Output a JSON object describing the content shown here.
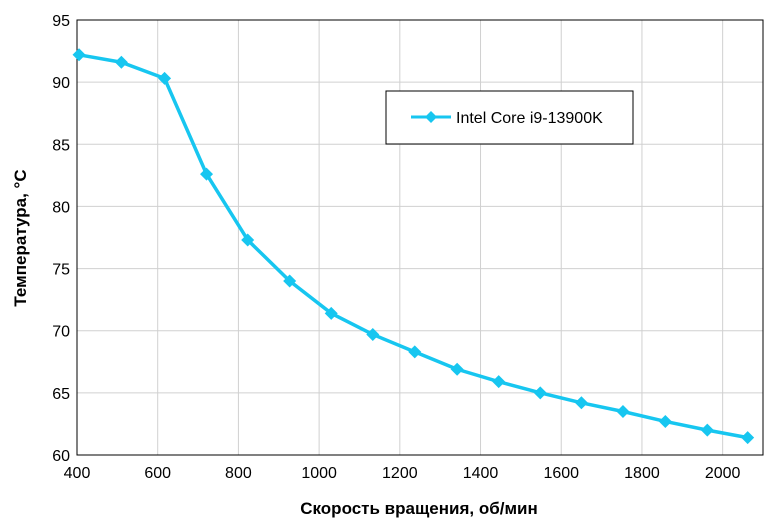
{
  "chart_data": {
    "type": "line",
    "title": "",
    "xlabel": "Скорость вращения, об/мин",
    "ylabel": "Температура, °C",
    "xlim": [
      400,
      2100
    ],
    "ylim": [
      60,
      95
    ],
    "x_ticks": [
      400,
      600,
      800,
      1000,
      1200,
      1400,
      1600,
      1800,
      2000
    ],
    "y_ticks": [
      60,
      65,
      70,
      75,
      80,
      85,
      90,
      95
    ],
    "grid": true,
    "legend_position": "top-right",
    "series": [
      {
        "name": "Intel Core i9-13900K",
        "color": "#17c6f0",
        "marker": "diamond",
        "x": [
          405,
          510,
          617,
          721,
          823,
          927,
          1030,
          1133,
          1237,
          1342,
          1445,
          1548,
          1650,
          1753,
          1858,
          1962,
          2062
        ],
        "y": [
          92.2,
          91.6,
          90.3,
          82.6,
          77.3,
          74.0,
          71.4,
          69.7,
          68.3,
          66.9,
          65.9,
          65.0,
          64.2,
          63.5,
          62.7,
          62.0,
          61.4
        ]
      }
    ]
  }
}
